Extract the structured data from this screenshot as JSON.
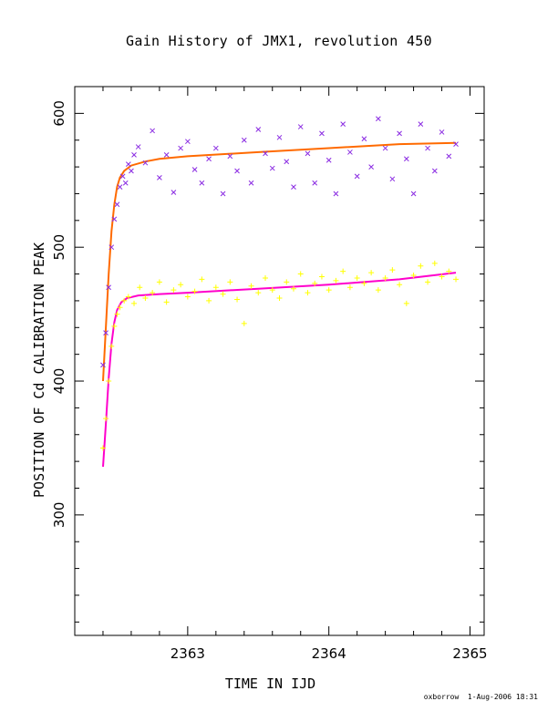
{
  "chart_data": {
    "type": "scatter",
    "title": "Gain History of JMX1, revolution 450",
    "xlabel": "TIME IN IJD",
    "ylabel": "POSITION OF Cd CALIBRATION PEAK",
    "xlim": [
      2362.2,
      2365.1
    ],
    "ylim": [
      210,
      620
    ],
    "x_ticks": [
      "2363",
      "2364",
      "2365"
    ],
    "x_tick_values": [
      2363,
      2364,
      2365
    ],
    "y_ticks": [
      "300",
      "400",
      "500",
      "600"
    ],
    "y_tick_values": [
      300,
      400,
      500,
      600
    ],
    "series": [
      {
        "marker": "x",
        "color": "#8a2be2",
        "points": [
          [
            2362.4,
            412
          ],
          [
            2362.42,
            436
          ],
          [
            2362.44,
            470
          ],
          [
            2362.46,
            500
          ],
          [
            2362.48,
            521
          ],
          [
            2362.5,
            532
          ],
          [
            2362.52,
            545
          ],
          [
            2362.54,
            553
          ],
          [
            2362.56,
            548
          ],
          [
            2362.58,
            562
          ],
          [
            2362.6,
            557
          ],
          [
            2362.62,
            569
          ],
          [
            2362.65,
            575
          ],
          [
            2362.7,
            563
          ],
          [
            2362.75,
            587
          ],
          [
            2362.8,
            552
          ],
          [
            2362.85,
            569
          ],
          [
            2362.9,
            541
          ],
          [
            2362.95,
            574
          ],
          [
            2363.0,
            579
          ],
          [
            2363.05,
            558
          ],
          [
            2363.1,
            548
          ],
          [
            2363.15,
            566
          ],
          [
            2363.2,
            574
          ],
          [
            2363.25,
            540
          ],
          [
            2363.3,
            568
          ],
          [
            2363.35,
            557
          ],
          [
            2363.4,
            580
          ],
          [
            2363.45,
            548
          ],
          [
            2363.5,
            588
          ],
          [
            2363.55,
            570
          ],
          [
            2363.6,
            559
          ],
          [
            2363.65,
            582
          ],
          [
            2363.7,
            564
          ],
          [
            2363.75,
            545
          ],
          [
            2363.8,
            590
          ],
          [
            2363.85,
            570
          ],
          [
            2363.9,
            548
          ],
          [
            2363.95,
            585
          ],
          [
            2364.0,
            565
          ],
          [
            2364.05,
            540
          ],
          [
            2364.1,
            592
          ],
          [
            2364.15,
            571
          ],
          [
            2364.2,
            553
          ],
          [
            2364.25,
            581
          ],
          [
            2364.3,
            560
          ],
          [
            2364.35,
            596
          ],
          [
            2364.4,
            574
          ],
          [
            2364.45,
            551
          ],
          [
            2364.5,
            585
          ],
          [
            2364.55,
            566
          ],
          [
            2364.6,
            540
          ],
          [
            2364.65,
            592
          ],
          [
            2364.7,
            574
          ],
          [
            2364.75,
            557
          ],
          [
            2364.8,
            586
          ],
          [
            2364.85,
            568
          ],
          [
            2364.9,
            577
          ]
        ]
      },
      {
        "marker": "+",
        "color": "#ffff00",
        "points": [
          [
            2362.4,
            350
          ],
          [
            2362.42,
            372
          ],
          [
            2362.44,
            400
          ],
          [
            2362.46,
            426
          ],
          [
            2362.48,
            441
          ],
          [
            2362.5,
            450
          ],
          [
            2362.52,
            455
          ],
          [
            2362.55,
            460
          ],
          [
            2362.58,
            463
          ],
          [
            2362.62,
            458
          ],
          [
            2362.66,
            470
          ],
          [
            2362.7,
            462
          ],
          [
            2362.75,
            466
          ],
          [
            2362.8,
            474
          ],
          [
            2362.85,
            459
          ],
          [
            2362.9,
            468
          ],
          [
            2362.95,
            472
          ],
          [
            2363.0,
            463
          ],
          [
            2363.05,
            467
          ],
          [
            2363.1,
            476
          ],
          [
            2363.15,
            460
          ],
          [
            2363.2,
            470
          ],
          [
            2363.25,
            465
          ],
          [
            2363.3,
            474
          ],
          [
            2363.35,
            461
          ],
          [
            2363.4,
            443
          ],
          [
            2363.45,
            471
          ],
          [
            2363.5,
            466
          ],
          [
            2363.55,
            477
          ],
          [
            2363.6,
            468
          ],
          [
            2363.65,
            462
          ],
          [
            2363.7,
            474
          ],
          [
            2363.75,
            469
          ],
          [
            2363.8,
            480
          ],
          [
            2363.85,
            466
          ],
          [
            2363.9,
            473
          ],
          [
            2363.95,
            478
          ],
          [
            2364.0,
            468
          ],
          [
            2364.05,
            475
          ],
          [
            2364.1,
            482
          ],
          [
            2364.15,
            470
          ],
          [
            2364.2,
            477
          ],
          [
            2364.25,
            473
          ],
          [
            2364.3,
            481
          ],
          [
            2364.35,
            468
          ],
          [
            2364.4,
            477
          ],
          [
            2364.45,
            483
          ],
          [
            2364.5,
            472
          ],
          [
            2364.55,
            458
          ],
          [
            2364.6,
            479
          ],
          [
            2364.65,
            486
          ],
          [
            2364.7,
            474
          ],
          [
            2364.75,
            488
          ],
          [
            2364.8,
            478
          ],
          [
            2364.85,
            482
          ],
          [
            2364.9,
            476
          ]
        ]
      }
    ],
    "fit_lines": [
      {
        "color": "#ff6a00",
        "points": [
          [
            2362.4,
            400
          ],
          [
            2362.42,
            440
          ],
          [
            2362.44,
            480
          ],
          [
            2362.46,
            512
          ],
          [
            2362.48,
            532
          ],
          [
            2362.5,
            545
          ],
          [
            2362.52,
            552
          ],
          [
            2362.55,
            557
          ],
          [
            2362.6,
            561
          ],
          [
            2362.7,
            564
          ],
          [
            2362.8,
            566
          ],
          [
            2363.0,
            568
          ],
          [
            2363.5,
            571
          ],
          [
            2364.0,
            574
          ],
          [
            2364.5,
            577
          ],
          [
            2364.9,
            578
          ]
        ]
      },
      {
        "color": "#ff00cc",
        "points": [
          [
            2362.4,
            336
          ],
          [
            2362.42,
            368
          ],
          [
            2362.44,
            402
          ],
          [
            2362.46,
            428
          ],
          [
            2362.48,
            444
          ],
          [
            2362.5,
            453
          ],
          [
            2362.53,
            459
          ],
          [
            2362.57,
            462
          ],
          [
            2362.65,
            464
          ],
          [
            2362.8,
            465
          ],
          [
            2363.0,
            466
          ],
          [
            2363.5,
            469
          ],
          [
            2364.0,
            472
          ],
          [
            2364.5,
            476
          ],
          [
            2364.9,
            481
          ]
        ]
      }
    ],
    "grid": false,
    "legend": "none"
  },
  "footer": {
    "text": "oxborrow  1-Aug-2006 18:31"
  }
}
